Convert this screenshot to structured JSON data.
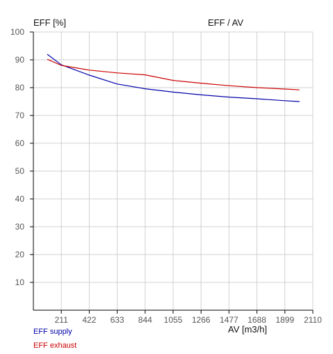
{
  "chart_data": {
    "type": "line",
    "title": "EFF / AV",
    "ylabel": "EFF [%]",
    "xlabel": "AV [m3/h]",
    "xlim": [
      0,
      2110
    ],
    "ylim": [
      0,
      100
    ],
    "x_ticks": [
      211,
      422,
      633,
      844,
      1055,
      1266,
      1477,
      1688,
      1899,
      2110
    ],
    "x_tick_labels": [
      "211",
      "422",
      "633",
      "844",
      "1055",
      "1266",
      "1477",
      "1688",
      "1899",
      "2110"
    ],
    "y_ticks": [
      10,
      20,
      30,
      40,
      50,
      60,
      70,
      80,
      90,
      100
    ],
    "y_tick_labels": [
      "10",
      "20",
      "30",
      "40",
      "50",
      "60",
      "70",
      "80",
      "90",
      "100"
    ],
    "grid": true,
    "legend_position": "bottom-left",
    "series": [
      {
        "name": "EFF supply",
        "color": "#0000aa",
        "points": [
          [
            105,
            92
          ],
          [
            211,
            88.2
          ],
          [
            422,
            84.5
          ],
          [
            633,
            81.3
          ],
          [
            844,
            79.6
          ],
          [
            1055,
            78.4
          ],
          [
            1266,
            77.4
          ],
          [
            1477,
            76.6
          ],
          [
            1688,
            76
          ],
          [
            1899,
            75.3
          ],
          [
            2010,
            75
          ]
        ]
      },
      {
        "name": "EFF exhaust",
        "color": "#cc0000",
        "points": [
          [
            105,
            90.2
          ],
          [
            211,
            88
          ],
          [
            422,
            86.3
          ],
          [
            633,
            85.3
          ],
          [
            844,
            84.6
          ],
          [
            1055,
            82.6
          ],
          [
            1266,
            81.6
          ],
          [
            1477,
            80.7
          ],
          [
            1688,
            80
          ],
          [
            1899,
            79.5
          ],
          [
            2010,
            79.2
          ]
        ]
      }
    ]
  }
}
